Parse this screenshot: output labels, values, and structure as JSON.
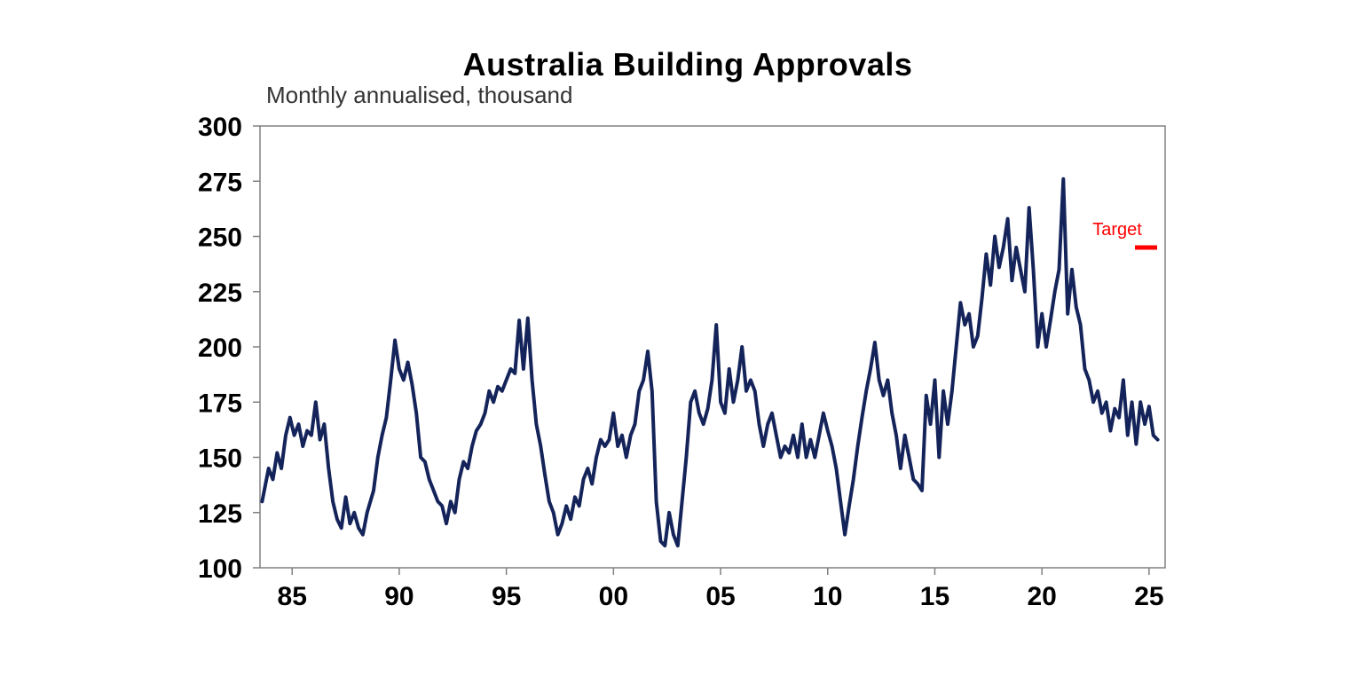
{
  "chart_data": {
    "type": "line",
    "title": "Australia Building Approvals",
    "subtitle": "Monthly annualised, thousand",
    "xlabel": "",
    "ylabel": "",
    "xlim": [
      1983.5,
      2025.75
    ],
    "ylim": [
      100,
      300
    ],
    "y_ticks": [
      100,
      125,
      150,
      175,
      200,
      225,
      250,
      275,
      300
    ],
    "x_ticks": [
      {
        "year": 1985,
        "label": "85"
      },
      {
        "year": 1990,
        "label": "90"
      },
      {
        "year": 1995,
        "label": "95"
      },
      {
        "year": 2000,
        "label": "00"
      },
      {
        "year": 2005,
        "label": "05"
      },
      {
        "year": 2010,
        "label": "10"
      },
      {
        "year": 2015,
        "label": "15"
      },
      {
        "year": 2020,
        "label": "20"
      },
      {
        "year": 2025,
        "label": "25"
      }
    ],
    "grid": false,
    "series": [
      {
        "color": "#14245a",
        "points": [
          [
            1983.6,
            130
          ],
          [
            1983.9,
            145
          ],
          [
            1984.1,
            140
          ],
          [
            1984.3,
            152
          ],
          [
            1984.5,
            145
          ],
          [
            1984.7,
            160
          ],
          [
            1984.9,
            168
          ],
          [
            1985.1,
            160
          ],
          [
            1985.3,
            165
          ],
          [
            1985.5,
            155
          ],
          [
            1985.7,
            162
          ],
          [
            1985.9,
            160
          ],
          [
            1986.1,
            175
          ],
          [
            1986.3,
            158
          ],
          [
            1986.5,
            165
          ],
          [
            1986.7,
            145
          ],
          [
            1986.9,
            130
          ],
          [
            1987.1,
            122
          ],
          [
            1987.3,
            118
          ],
          [
            1987.5,
            132
          ],
          [
            1987.7,
            120
          ],
          [
            1987.9,
            125
          ],
          [
            1988.1,
            118
          ],
          [
            1988.3,
            115
          ],
          [
            1988.5,
            125
          ],
          [
            1988.8,
            135
          ],
          [
            1989.0,
            150
          ],
          [
            1989.2,
            160
          ],
          [
            1989.4,
            168
          ],
          [
            1989.6,
            185
          ],
          [
            1989.8,
            203
          ],
          [
            1990.0,
            190
          ],
          [
            1990.2,
            185
          ],
          [
            1990.4,
            193
          ],
          [
            1990.6,
            183
          ],
          [
            1990.8,
            170
          ],
          [
            1991.0,
            150
          ],
          [
            1991.2,
            148
          ],
          [
            1991.4,
            140
          ],
          [
            1991.6,
            135
          ],
          [
            1991.8,
            130
          ],
          [
            1992.0,
            128
          ],
          [
            1992.2,
            120
          ],
          [
            1992.4,
            130
          ],
          [
            1992.6,
            125
          ],
          [
            1992.8,
            140
          ],
          [
            1993.0,
            148
          ],
          [
            1993.2,
            145
          ],
          [
            1993.4,
            155
          ],
          [
            1993.6,
            162
          ],
          [
            1993.8,
            165
          ],
          [
            1994.0,
            170
          ],
          [
            1994.2,
            180
          ],
          [
            1994.4,
            175
          ],
          [
            1994.6,
            182
          ],
          [
            1994.8,
            180
          ],
          [
            1995.0,
            185
          ],
          [
            1995.2,
            190
          ],
          [
            1995.4,
            188
          ],
          [
            1995.6,
            212
          ],
          [
            1995.8,
            190
          ],
          [
            1996.0,
            213
          ],
          [
            1996.2,
            185
          ],
          [
            1996.4,
            165
          ],
          [
            1996.6,
            155
          ],
          [
            1996.8,
            142
          ],
          [
            1997.0,
            130
          ],
          [
            1997.2,
            125
          ],
          [
            1997.4,
            115
          ],
          [
            1997.6,
            120
          ],
          [
            1997.8,
            128
          ],
          [
            1998.0,
            122
          ],
          [
            1998.2,
            132
          ],
          [
            1998.4,
            128
          ],
          [
            1998.6,
            140
          ],
          [
            1998.8,
            145
          ],
          [
            1999.0,
            138
          ],
          [
            1999.2,
            150
          ],
          [
            1999.4,
            158
          ],
          [
            1999.6,
            155
          ],
          [
            1999.8,
            158
          ],
          [
            2000.0,
            170
          ],
          [
            2000.2,
            155
          ],
          [
            2000.4,
            160
          ],
          [
            2000.6,
            150
          ],
          [
            2000.8,
            160
          ],
          [
            2001.0,
            165
          ],
          [
            2001.2,
            180
          ],
          [
            2001.4,
            185
          ],
          [
            2001.6,
            198
          ],
          [
            2001.8,
            180
          ],
          [
            2002.0,
            130
          ],
          [
            2002.2,
            112
          ],
          [
            2002.4,
            110
          ],
          [
            2002.6,
            125
          ],
          [
            2002.8,
            115
          ],
          [
            2003.0,
            110
          ],
          [
            2003.2,
            130
          ],
          [
            2003.4,
            150
          ],
          [
            2003.6,
            175
          ],
          [
            2003.8,
            180
          ],
          [
            2004.0,
            170
          ],
          [
            2004.2,
            165
          ],
          [
            2004.4,
            172
          ],
          [
            2004.6,
            185
          ],
          [
            2004.8,
            210
          ],
          [
            2005.0,
            175
          ],
          [
            2005.2,
            170
          ],
          [
            2005.4,
            190
          ],
          [
            2005.6,
            175
          ],
          [
            2005.8,
            185
          ],
          [
            2006.0,
            200
          ],
          [
            2006.2,
            180
          ],
          [
            2006.4,
            185
          ],
          [
            2006.6,
            180
          ],
          [
            2006.8,
            165
          ],
          [
            2007.0,
            155
          ],
          [
            2007.2,
            165
          ],
          [
            2007.4,
            170
          ],
          [
            2007.6,
            160
          ],
          [
            2007.8,
            150
          ],
          [
            2008.0,
            155
          ],
          [
            2008.2,
            152
          ],
          [
            2008.4,
            160
          ],
          [
            2008.6,
            150
          ],
          [
            2008.8,
            165
          ],
          [
            2009.0,
            150
          ],
          [
            2009.2,
            158
          ],
          [
            2009.4,
            150
          ],
          [
            2009.6,
            160
          ],
          [
            2009.8,
            170
          ],
          [
            2010.0,
            162
          ],
          [
            2010.2,
            155
          ],
          [
            2010.4,
            145
          ],
          [
            2010.6,
            130
          ],
          [
            2010.8,
            115
          ],
          [
            2011.0,
            128
          ],
          [
            2011.2,
            140
          ],
          [
            2011.4,
            155
          ],
          [
            2011.6,
            168
          ],
          [
            2011.8,
            180
          ],
          [
            2012.0,
            190
          ],
          [
            2012.2,
            202
          ],
          [
            2012.4,
            185
          ],
          [
            2012.6,
            178
          ],
          [
            2012.8,
            185
          ],
          [
            2013.0,
            170
          ],
          [
            2013.2,
            160
          ],
          [
            2013.4,
            145
          ],
          [
            2013.6,
            160
          ],
          [
            2013.8,
            150
          ],
          [
            2014.0,
            140
          ],
          [
            2014.2,
            138
          ],
          [
            2014.4,
            135
          ],
          [
            2014.6,
            178
          ],
          [
            2014.8,
            165
          ],
          [
            2015.0,
            185
          ],
          [
            2015.2,
            150
          ],
          [
            2015.4,
            180
          ],
          [
            2015.6,
            165
          ],
          [
            2015.8,
            180
          ],
          [
            2016.0,
            200
          ],
          [
            2016.2,
            220
          ],
          [
            2016.4,
            210
          ],
          [
            2016.6,
            215
          ],
          [
            2016.8,
            200
          ],
          [
            2017.0,
            205
          ],
          [
            2017.2,
            222
          ],
          [
            2017.4,
            242
          ],
          [
            2017.6,
            228
          ],
          [
            2017.8,
            250
          ],
          [
            2018.0,
            236
          ],
          [
            2018.2,
            245
          ],
          [
            2018.4,
            258
          ],
          [
            2018.6,
            230
          ],
          [
            2018.8,
            245
          ],
          [
            2019.0,
            235
          ],
          [
            2019.2,
            225
          ],
          [
            2019.4,
            263
          ],
          [
            2019.6,
            235
          ],
          [
            2019.8,
            200
          ],
          [
            2020.0,
            215
          ],
          [
            2020.2,
            200
          ],
          [
            2020.4,
            212
          ],
          [
            2020.6,
            225
          ],
          [
            2020.8,
            235
          ],
          [
            2021.0,
            276
          ],
          [
            2021.2,
            215
          ],
          [
            2021.4,
            235
          ],
          [
            2021.6,
            218
          ],
          [
            2021.8,
            210
          ],
          [
            2022.0,
            190
          ],
          [
            2022.2,
            185
          ],
          [
            2022.4,
            175
          ],
          [
            2022.6,
            180
          ],
          [
            2022.8,
            170
          ],
          [
            2023.0,
            175
          ],
          [
            2023.2,
            162
          ],
          [
            2023.4,
            172
          ],
          [
            2023.6,
            168
          ],
          [
            2023.8,
            185
          ],
          [
            2024.0,
            160
          ],
          [
            2024.2,
            175
          ],
          [
            2024.4,
            156
          ],
          [
            2024.6,
            175
          ],
          [
            2024.8,
            165
          ],
          [
            2025.0,
            173
          ],
          [
            2025.2,
            160
          ],
          [
            2025.4,
            158
          ]
        ]
      }
    ],
    "annotation": {
      "label": "Target",
      "value": 245,
      "color": "#ff0000"
    }
  }
}
